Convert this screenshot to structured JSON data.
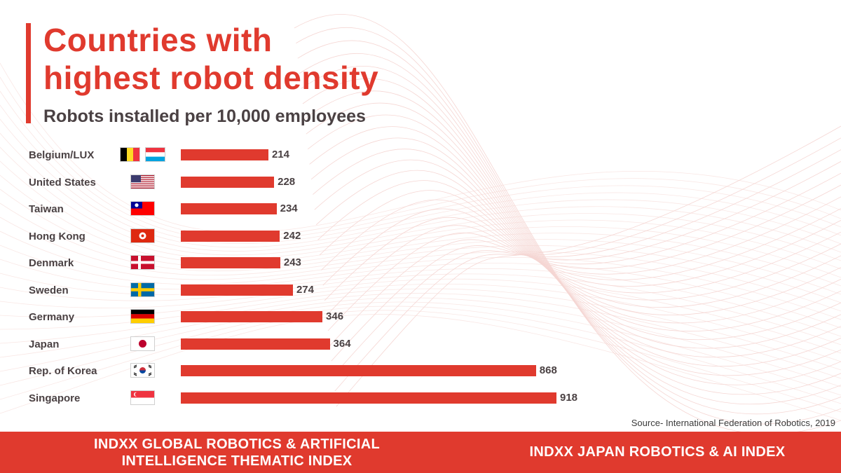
{
  "colors": {
    "accent": "#E03A2E",
    "dark_text": "#4A4143",
    "muted_text": "#3a3a3a",
    "background": "#FFFFFF",
    "mesh": "#F2C9C5"
  },
  "title_lines": [
    "Countries with",
    "highest robot density"
  ],
  "subtitle": "Robots installed per 10,000 employees",
  "chart_data": {
    "type": "bar",
    "orientation": "horizontal",
    "title": "Countries with highest robot density",
    "subtitle": "Robots installed per 10,000 employees",
    "xlabel": "",
    "ylabel": "",
    "categories": [
      "Belgium/LUX",
      "United States",
      "Taiwan",
      "Hong Kong",
      "Denmark",
      "Sweden",
      "Germany",
      "Japan",
      "Rep. of Korea",
      "Singapore"
    ],
    "values": [
      214,
      228,
      234,
      242,
      243,
      274,
      346,
      364,
      868,
      918
    ],
    "data_labels": [
      "214",
      "228",
      "234",
      "242",
      "243",
      "274",
      "346",
      "364",
      "868",
      "918"
    ],
    "flags": [
      [
        "flag-belgium",
        "flag-luxembourg"
      ],
      [
        "flag-united-states"
      ],
      [
        "flag-taiwan"
      ],
      [
        "flag-hong-kong"
      ],
      [
        "flag-denmark"
      ],
      [
        "flag-sweden"
      ],
      [
        "flag-germany"
      ],
      [
        "flag-japan"
      ],
      [
        "flag-south-korea"
      ],
      [
        "flag-singapore"
      ]
    ],
    "bar_color": "#E03A2E",
    "xlim": [
      0,
      918
    ],
    "grid": false,
    "legend": "none"
  },
  "source": "Source- International Federation of Robotics, 2019",
  "footer": {
    "left_lines": [
      "INDXX GLOBAL ROBOTICS & ARTIFICIAL",
      "INTELLIGENCE THEMATIC INDEX"
    ],
    "right": "INDXX JAPAN ROBOTICS & AI INDEX"
  }
}
